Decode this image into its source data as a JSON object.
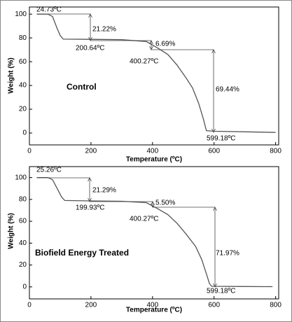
{
  "chart_data": [
    {
      "type": "line",
      "label": "Control",
      "x_label": "Temperature (ºC)",
      "y_label": "Weight (%)",
      "x": [
        25,
        60,
        75,
        90,
        100,
        110,
        200,
        300,
        380,
        400,
        420,
        450,
        480,
        510,
        530,
        550,
        565,
        575,
        600,
        700,
        800
      ],
      "series": [
        {
          "color": "#555555",
          "values": [
            100,
            100,
            98,
            88,
            82,
            79,
            78.8,
            78.5,
            77,
            74,
            71,
            66,
            57,
            46,
            38,
            25,
            12,
            2,
            1.5,
            1,
            0.5
          ]
        }
      ],
      "xlim": [
        0,
        810
      ],
      "ylim": [
        -10,
        106
      ],
      "xticks": [
        0,
        200,
        400,
        600,
        800
      ],
      "yticks": [
        0,
        20,
        40,
        60,
        80,
        100
      ],
      "annotations": [
        "24.73ºC",
        "21.22%",
        "200.64ºC",
        "6.69%",
        "400.27ºC",
        "69.44%",
        "599.18ºC"
      ]
    },
    {
      "type": "line",
      "label": "Biofield Energy Treated",
      "x_label": "Temperature (ºC)",
      "y_label": "Weight (%)",
      "x": [
        25,
        60,
        75,
        90,
        105,
        115,
        200,
        300,
        380,
        400,
        420,
        450,
        480,
        510,
        540,
        560,
        575,
        585,
        592,
        700,
        790
      ],
      "series": [
        {
          "color": "#555555",
          "values": [
            100,
            100,
            98,
            90,
            82,
            79,
            78.6,
            78.3,
            77,
            74,
            71,
            66,
            58,
            48,
            37,
            25,
            12,
            3,
            0.5,
            0.3,
            0.2
          ]
        }
      ],
      "xlim": [
        0,
        810
      ],
      "ylim": [
        -11,
        110
      ],
      "xticks": [
        0,
        200,
        400,
        600,
        800
      ],
      "yticks": [
        0,
        20,
        40,
        60,
        80,
        100
      ],
      "annotations": [
        "25.26ºC",
        "21.29%",
        "199.93ºC",
        "5.50%",
        "400.27ºC",
        "71.97%",
        "599.18ºC"
      ]
    }
  ]
}
